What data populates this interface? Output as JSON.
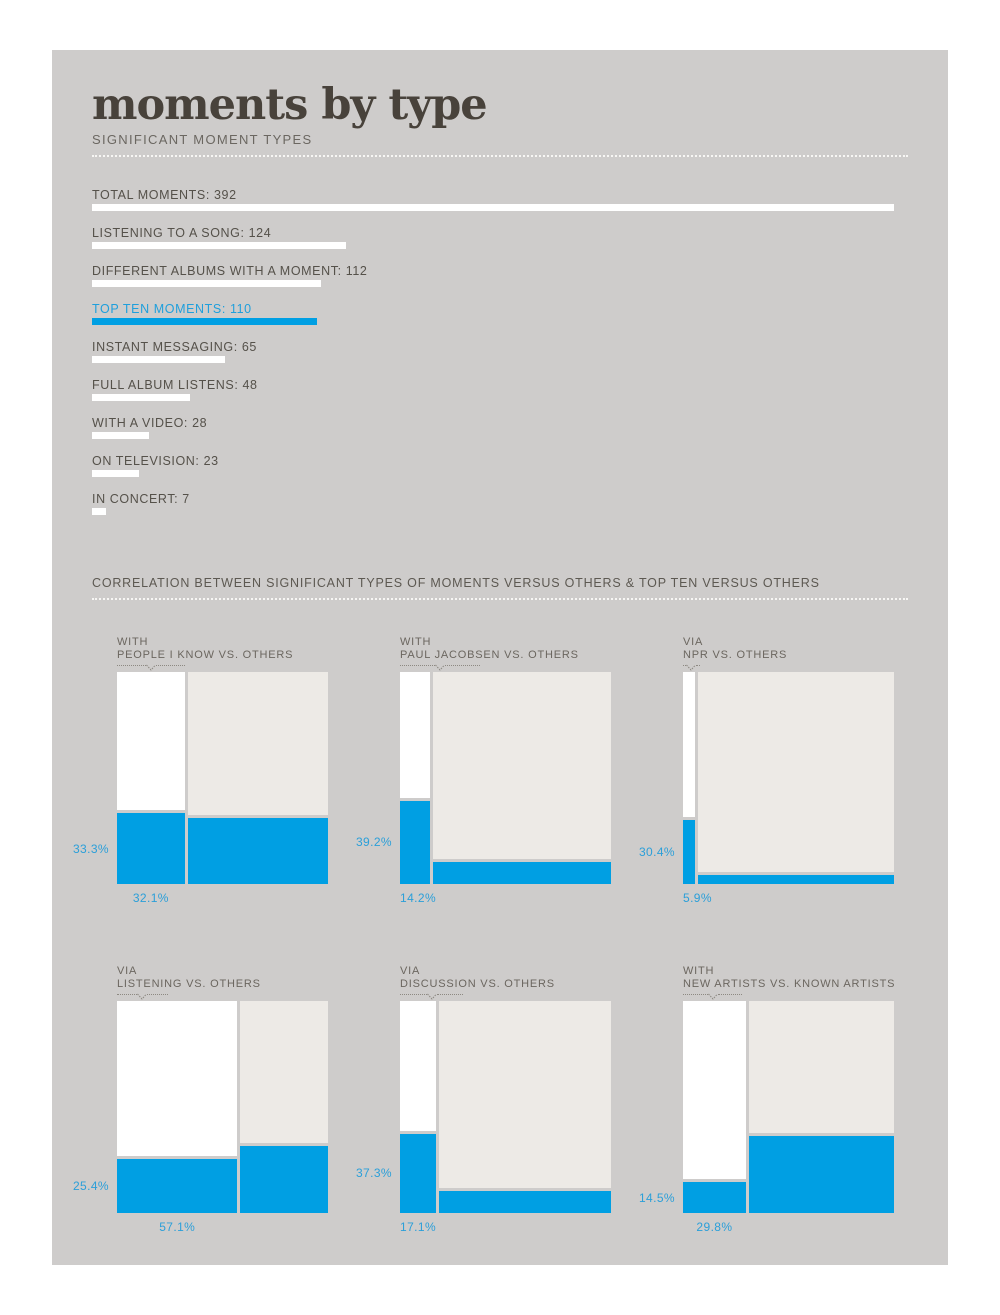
{
  "header": {
    "title": "moments by type"
  },
  "colors": {
    "accent_blue": "#009fe3",
    "panel_background": "#cecccb",
    "page_background": "#ffffff",
    "tile_white": "#ffffff",
    "tile_offwhite": "#edeae6",
    "text_dark": "#55514a",
    "text_blue": "#2b9fd9",
    "title_color": "#48423b"
  },
  "chart_data": [
    {
      "type": "bar",
      "title": "SIGNIFICANT MOMENT TYPES",
      "orientation": "horizontal",
      "categories": [
        "TOTAL MOMENTS",
        "LISTENING TO A SONG",
        "DIFFERENT ALBUMS WITH A MOMENT",
        "TOP TEN MOMENTS",
        "INSTANT MESSAGING",
        "FULL ALBUM LISTENS",
        "WITH A VIDEO",
        "ON TELEVISION",
        "IN CONCERT"
      ],
      "values": [
        392,
        124,
        112,
        110,
        65,
        48,
        28,
        23,
        7
      ],
      "max_value": 392,
      "highlight_index": 3,
      "highlight_label": "TOP TEN MOMENTS"
    },
    {
      "type": "mosaic",
      "title": "CORRELATION BETWEEN SIGNIFICANT TYPES OF MOMENTS VERSUS OTHERS & TOP TEN VERSUS OTHERS",
      "note": "col_pct = labeled column width %, row_blue_pct = labeled blue height % of left column, others_blue_pct_est = unlabeled blue height % of right column estimated from pixels, brace_width_pct = dotted brace width as % of chart width",
      "mosaics": [
        {
          "prefix": "WITH",
          "title": "PEOPLE I KNOW VS. OTHERS",
          "row_blue_pct": 33.3,
          "col_pct": 32.1,
          "others_blue_pct_est": 31.0,
          "brace_width_pct": 32
        },
        {
          "prefix": "WITH",
          "title": "PAUL JACOBSEN VS. OTHERS",
          "row_blue_pct": 39.2,
          "col_pct": 14.2,
          "others_blue_pct_est": 10.4,
          "brace_width_pct": 38
        },
        {
          "prefix": "VIA",
          "title": "NPR VS. OTHERS",
          "row_blue_pct": 30.4,
          "col_pct": 5.9,
          "others_blue_pct_est": 4.3,
          "brace_width_pct": 8
        },
        {
          "prefix": "VIA",
          "title": "LISTENING VS. OTHERS",
          "row_blue_pct": 25.4,
          "col_pct": 57.1,
          "others_blue_pct_est": 31.8,
          "brace_width_pct": 24
        },
        {
          "prefix": "VIA",
          "title": "DISCUSSION VS. OTHERS",
          "row_blue_pct": 37.3,
          "col_pct": 17.1,
          "others_blue_pct_est": 10.4,
          "brace_width_pct": 30
        },
        {
          "prefix": "WITH",
          "title": "NEW ARTISTS VS. KNOWN ARTISTS",
          "row_blue_pct": 14.5,
          "col_pct": 29.8,
          "others_blue_pct_est": 36.4,
          "brace_width_pct": 28
        }
      ]
    }
  ]
}
